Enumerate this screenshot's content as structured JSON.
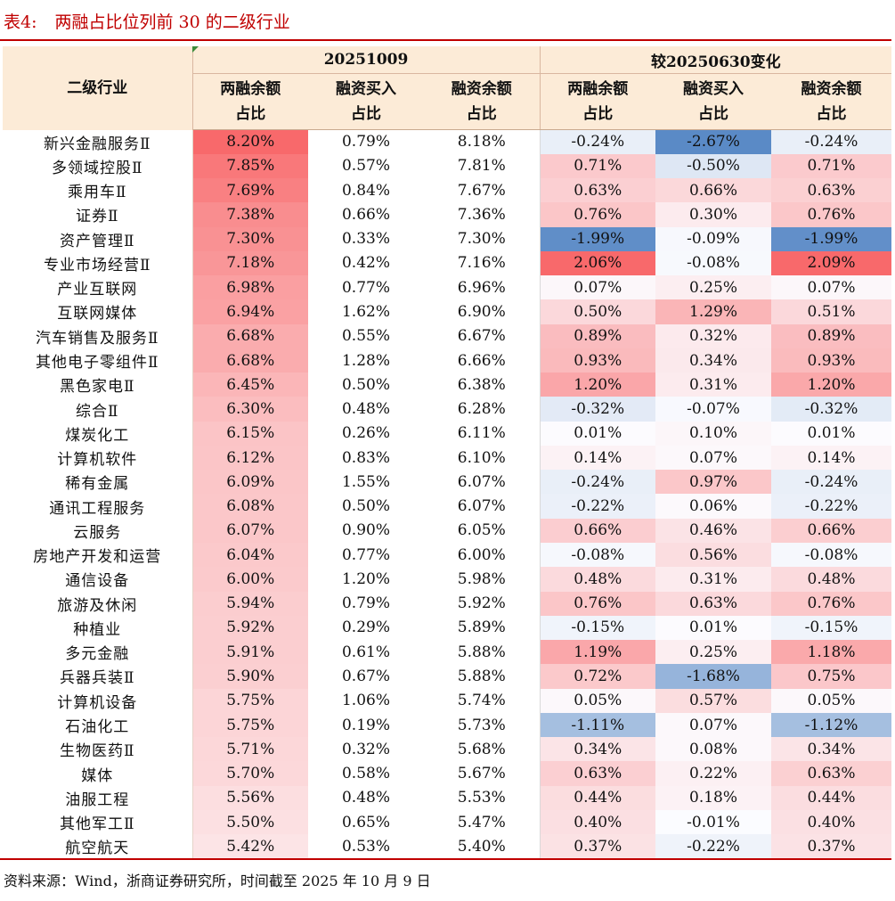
{
  "title": {
    "prefix": "表4:",
    "text": "两融占比位列前 30 的二级行业"
  },
  "header": {
    "industry": "二级行业",
    "group_date": "20251009",
    "group_change": "较20250630变化",
    "col1": [
      "两融余额",
      "占比"
    ],
    "col2": [
      "融资买入",
      "占比"
    ],
    "col3": [
      "融资余额",
      "占比"
    ],
    "col4": [
      "两融余额",
      "占比"
    ],
    "col5": [
      "融资买入",
      "占比"
    ],
    "col6": [
      "融资余额",
      "占比"
    ]
  },
  "rows": [
    [
      "新兴金融服务Ⅱ",
      "8.20%",
      "0.79%",
      "8.18%",
      "-0.24%",
      "-2.67%",
      "-0.24%"
    ],
    [
      "多领域控股Ⅱ",
      "7.85%",
      "0.57%",
      "7.81%",
      "0.71%",
      "-0.50%",
      "0.71%"
    ],
    [
      "乘用车Ⅱ",
      "7.69%",
      "0.84%",
      "7.67%",
      "0.63%",
      "0.66%",
      "0.63%"
    ],
    [
      "证券Ⅱ",
      "7.38%",
      "0.66%",
      "7.36%",
      "0.76%",
      "0.30%",
      "0.76%"
    ],
    [
      "资产管理Ⅱ",
      "7.30%",
      "0.33%",
      "7.30%",
      "-1.99%",
      "-0.09%",
      "-1.99%"
    ],
    [
      "专业市场经营Ⅱ",
      "7.18%",
      "0.42%",
      "7.16%",
      "2.06%",
      "-0.08%",
      "2.09%"
    ],
    [
      "产业互联网",
      "6.98%",
      "0.77%",
      "6.96%",
      "0.07%",
      "0.25%",
      "0.07%"
    ],
    [
      "互联网媒体",
      "6.94%",
      "1.62%",
      "6.90%",
      "0.50%",
      "1.29%",
      "0.51%"
    ],
    [
      "汽车销售及服务Ⅱ",
      "6.68%",
      "0.55%",
      "6.67%",
      "0.89%",
      "0.32%",
      "0.89%"
    ],
    [
      "其他电子零组件Ⅱ",
      "6.68%",
      "1.28%",
      "6.66%",
      "0.93%",
      "0.34%",
      "0.93%"
    ],
    [
      "黑色家电Ⅱ",
      "6.45%",
      "0.50%",
      "6.38%",
      "1.20%",
      "0.31%",
      "1.20%"
    ],
    [
      "综合Ⅱ",
      "6.30%",
      "0.48%",
      "6.28%",
      "-0.32%",
      "-0.07%",
      "-0.32%"
    ],
    [
      "煤炭化工",
      "6.15%",
      "0.26%",
      "6.11%",
      "0.01%",
      "0.10%",
      "0.01%"
    ],
    [
      "计算机软件",
      "6.12%",
      "0.83%",
      "6.10%",
      "0.14%",
      "0.07%",
      "0.14%"
    ],
    [
      "稀有金属",
      "6.09%",
      "1.55%",
      "6.07%",
      "-0.24%",
      "0.97%",
      "-0.24%"
    ],
    [
      "通讯工程服务",
      "6.08%",
      "0.50%",
      "6.07%",
      "-0.22%",
      "0.06%",
      "-0.22%"
    ],
    [
      "云服务",
      "6.07%",
      "0.90%",
      "6.05%",
      "0.66%",
      "0.46%",
      "0.66%"
    ],
    [
      "房地产开发和运营",
      "6.04%",
      "0.77%",
      "6.00%",
      "-0.08%",
      "0.56%",
      "-0.08%"
    ],
    [
      "通信设备",
      "6.00%",
      "1.20%",
      "5.98%",
      "0.48%",
      "0.31%",
      "0.48%"
    ],
    [
      "旅游及休闲",
      "5.94%",
      "0.79%",
      "5.92%",
      "0.76%",
      "0.63%",
      "0.76%"
    ],
    [
      "种植业",
      "5.92%",
      "0.29%",
      "5.89%",
      "-0.15%",
      "0.01%",
      "-0.15%"
    ],
    [
      "多元金融",
      "5.91%",
      "0.61%",
      "5.88%",
      "1.19%",
      "0.25%",
      "1.18%"
    ],
    [
      "兵器兵装Ⅱ",
      "5.90%",
      "0.67%",
      "5.88%",
      "0.72%",
      "-1.68%",
      "0.75%"
    ],
    [
      "计算机设备",
      "5.75%",
      "1.06%",
      "5.74%",
      "0.05%",
      "0.57%",
      "0.05%"
    ],
    [
      "石油化工",
      "5.75%",
      "0.19%",
      "5.73%",
      "-1.11%",
      "0.07%",
      "-1.12%"
    ],
    [
      "生物医药Ⅱ",
      "5.71%",
      "0.32%",
      "5.68%",
      "0.34%",
      "0.08%",
      "0.34%"
    ],
    [
      "媒体",
      "5.70%",
      "0.58%",
      "5.67%",
      "0.63%",
      "0.22%",
      "0.63%"
    ],
    [
      "油服工程",
      "5.56%",
      "0.48%",
      "5.53%",
      "0.44%",
      "0.18%",
      "0.44%"
    ],
    [
      "其他军工Ⅱ",
      "5.50%",
      "0.65%",
      "5.47%",
      "0.40%",
      "-0.01%",
      "0.40%"
    ],
    [
      "航空航天",
      "5.42%",
      "0.53%",
      "5.40%",
      "0.37%",
      "-0.22%",
      "0.37%"
    ]
  ],
  "heat": {
    "col1": {
      "min": 5.42,
      "max": 8.2,
      "low": "#fce4e6",
      "high": "#f8696b"
    },
    "change": {
      "pos": "#f8696b",
      "neg": "#5a8ac6",
      "mid": "#fcfcff"
    }
  },
  "source": "资料来源：Wind，浙商证券研究所，时间截至 2025 年 10 月 9 日"
}
